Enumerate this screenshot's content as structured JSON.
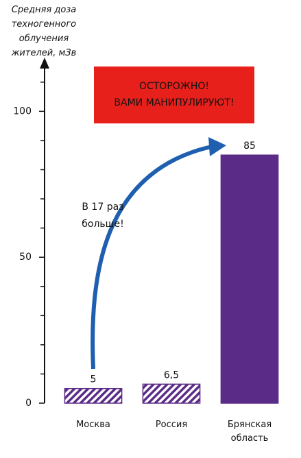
{
  "chart_data": {
    "type": "bar",
    "y_label": "Средняя доза техногенного облучения жителей, мЗв",
    "categories": [
      "Москва",
      "Россия",
      "Брянская область"
    ],
    "values": [
      5,
      6.5,
      85
    ],
    "value_labels": [
      "5",
      "6,5",
      "85"
    ],
    "color": "#5b2c87",
    "bar_styles": [
      "hatched",
      "hatched",
      "solid"
    ],
    "ylim": [
      0,
      117
    ],
    "yticks": [
      0,
      50,
      100
    ],
    "y_minor_ticks": [
      10,
      20,
      30,
      40,
      60,
      70,
      80,
      90,
      110
    ],
    "warning": [
      "ОСТОРОЖНО!",
      "ВАМИ МАНИПУЛИРУЮТ!"
    ],
    "callout": [
      "В 17 раз",
      "больше!"
    ]
  }
}
